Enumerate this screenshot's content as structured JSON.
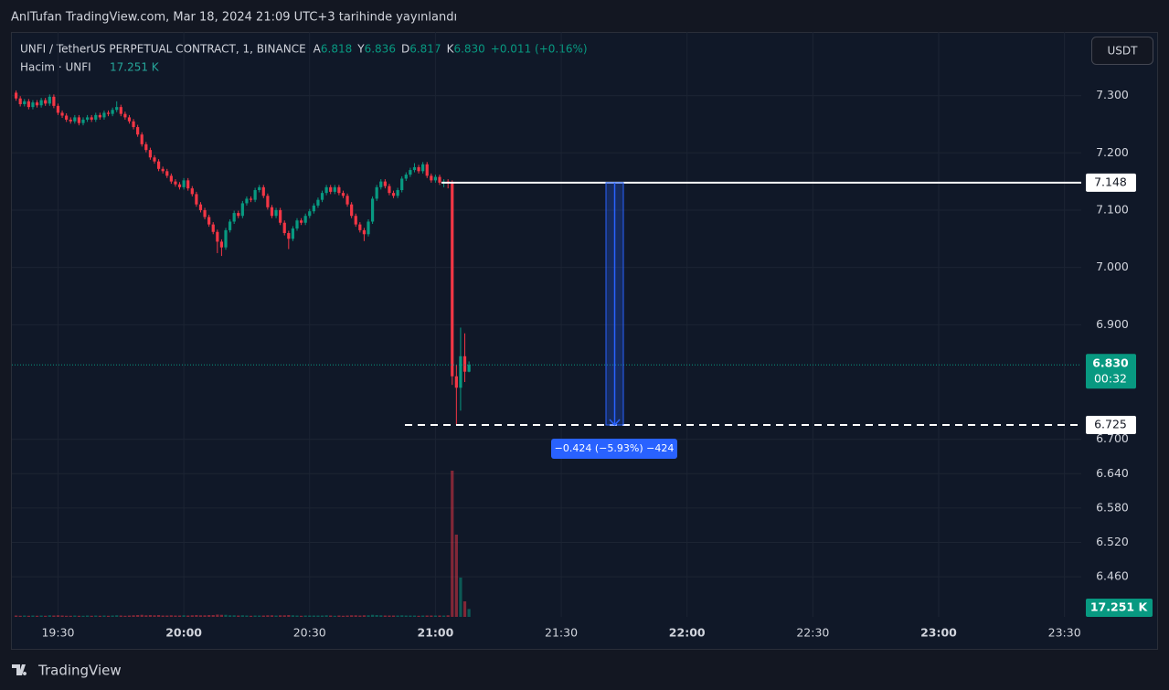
{
  "header": {
    "published": "AnlTufan TradingView.com, Mar 18, 2024 21:09 UTC+3 tarihinde yayınlandı",
    "currency": "USDT",
    "brand": "TradingView"
  },
  "chart_data": {
    "type": "candlestick",
    "title": "UNFI / TetherUS PERPETUAL CONTRACT, 1, BINANCE",
    "legend_ohlc": [
      {
        "key": "A",
        "value": "6.818"
      },
      {
        "key": "Y",
        "value": "6.836"
      },
      {
        "key": "D",
        "value": "6.817"
      },
      {
        "key": "K",
        "value": "6.830"
      }
    ],
    "change": "+0.011 (+0.16%)",
    "volume_title": "Hacim · UNFI",
    "volume_label": "17.251 K",
    "up_color": "#089981",
    "down_color": "#f23645",
    "x": [
      "19:20",
      "19:21",
      "19:22",
      "19:23",
      "19:24",
      "19:25",
      "19:26",
      "19:27",
      "19:28",
      "19:29",
      "19:30",
      "19:31",
      "19:32",
      "19:33",
      "19:34",
      "19:35",
      "19:36",
      "19:37",
      "19:38",
      "19:39",
      "19:40",
      "19:41",
      "19:42",
      "19:43",
      "19:44",
      "19:45",
      "19:46",
      "19:47",
      "19:48",
      "19:49",
      "19:50",
      "19:51",
      "19:52",
      "19:53",
      "19:54",
      "19:55",
      "19:56",
      "19:57",
      "19:58",
      "19:59",
      "20:00",
      "20:01",
      "20:02",
      "20:03",
      "20:04",
      "20:05",
      "20:06",
      "20:07",
      "20:08",
      "20:09",
      "20:10",
      "20:11",
      "20:12",
      "20:13",
      "20:14",
      "20:15",
      "20:16",
      "20:17",
      "20:18",
      "20:19",
      "20:20",
      "20:21",
      "20:22",
      "20:23",
      "20:24",
      "20:25",
      "20:26",
      "20:27",
      "20:28",
      "20:29",
      "20:30",
      "20:31",
      "20:32",
      "20:33",
      "20:34",
      "20:35",
      "20:36",
      "20:37",
      "20:38",
      "20:39",
      "20:40",
      "20:41",
      "20:42",
      "20:43",
      "20:44",
      "20:45",
      "20:46",
      "20:47",
      "20:48",
      "20:49",
      "20:50",
      "20:51",
      "20:52",
      "20:53",
      "20:54",
      "20:55",
      "20:56",
      "20:57",
      "20:58",
      "20:59",
      "21:00",
      "21:01",
      "21:02",
      "21:03",
      "21:04",
      "21:05",
      "21:06",
      "21:07",
      "21:08"
    ],
    "ohlc": [
      [
        7.305,
        7.309,
        7.291,
        7.295
      ],
      [
        7.295,
        7.299,
        7.281,
        7.285
      ],
      [
        7.285,
        7.294,
        7.281,
        7.29
      ],
      [
        7.29,
        7.294,
        7.276,
        7.28
      ],
      [
        7.28,
        7.292,
        7.276,
        7.288
      ],
      [
        7.288,
        7.292,
        7.279,
        7.283
      ],
      [
        7.283,
        7.296,
        7.279,
        7.292
      ],
      [
        7.292,
        7.296,
        7.282,
        7.286
      ],
      [
        7.286,
        7.302,
        7.282,
        7.298
      ],
      [
        7.298,
        7.302,
        7.278,
        7.282
      ],
      [
        7.282,
        7.286,
        7.266,
        7.27
      ],
      [
        7.27,
        7.274,
        7.261,
        7.265
      ],
      [
        7.265,
        7.269,
        7.254,
        7.258
      ],
      [
        7.258,
        7.262,
        7.251,
        7.255
      ],
      [
        7.255,
        7.266,
        7.251,
        7.262
      ],
      [
        7.262,
        7.266,
        7.248,
        7.252
      ],
      [
        7.252,
        7.262,
        7.248,
        7.258
      ],
      [
        7.258,
        7.266,
        7.254,
        7.262
      ],
      [
        7.262,
        7.266,
        7.254,
        7.258
      ],
      [
        7.258,
        7.27,
        7.254,
        7.266
      ],
      [
        7.266,
        7.27,
        7.258,
        7.262
      ],
      [
        7.262,
        7.274,
        7.258,
        7.27
      ],
      [
        7.27,
        7.274,
        7.264,
        7.268
      ],
      [
        7.268,
        7.279,
        7.264,
        7.275
      ],
      [
        7.275,
        7.29,
        7.271,
        7.28
      ],
      [
        7.28,
        7.284,
        7.264,
        7.268
      ],
      [
        7.268,
        7.272,
        7.258,
        7.262
      ],
      [
        7.262,
        7.266,
        7.251,
        7.255
      ],
      [
        7.255,
        7.259,
        7.241,
        7.245
      ],
      [
        7.245,
        7.249,
        7.228,
        7.232
      ],
      [
        7.232,
        7.236,
        7.211,
        7.215
      ],
      [
        7.215,
        7.219,
        7.201,
        7.205
      ],
      [
        7.205,
        7.209,
        7.188,
        7.192
      ],
      [
        7.192,
        7.196,
        7.181,
        7.185
      ],
      [
        7.185,
        7.189,
        7.168,
        7.172
      ],
      [
        7.172,
        7.176,
        7.164,
        7.168
      ],
      [
        7.168,
        7.172,
        7.156,
        7.16
      ],
      [
        7.16,
        7.164,
        7.146,
        7.15
      ],
      [
        7.15,
        7.154,
        7.141,
        7.145
      ],
      [
        7.145,
        7.149,
        7.136,
        7.14
      ],
      [
        7.14,
        7.156,
        7.136,
        7.152
      ],
      [
        7.152,
        7.156,
        7.134,
        7.138
      ],
      [
        7.138,
        7.142,
        7.124,
        7.128
      ],
      [
        7.128,
        7.132,
        7.106,
        7.11
      ],
      [
        7.11,
        7.114,
        7.096,
        7.1
      ],
      [
        7.1,
        7.104,
        7.084,
        7.088
      ],
      [
        7.088,
        7.092,
        7.071,
        7.075
      ],
      [
        7.075,
        7.079,
        7.058,
        7.062
      ],
      [
        7.062,
        7.066,
        7.025,
        7.045
      ],
      [
        7.045,
        7.049,
        7.02,
        7.035
      ],
      [
        7.035,
        7.069,
        7.031,
        7.065
      ],
      [
        7.065,
        7.084,
        7.061,
        7.08
      ],
      [
        7.08,
        7.099,
        7.076,
        7.095
      ],
      [
        7.095,
        7.099,
        7.086,
        7.09
      ],
      [
        7.09,
        7.116,
        7.086,
        7.112
      ],
      [
        7.112,
        7.124,
        7.108,
        7.12
      ],
      [
        7.12,
        7.124,
        7.114,
        7.118
      ],
      [
        7.118,
        7.139,
        7.114,
        7.135
      ],
      [
        7.135,
        7.144,
        7.131,
        7.14
      ],
      [
        7.14,
        7.144,
        7.121,
        7.125
      ],
      [
        7.125,
        7.129,
        7.101,
        7.105
      ],
      [
        7.105,
        7.109,
        7.086,
        7.09
      ],
      [
        7.09,
        7.104,
        7.086,
        7.1
      ],
      [
        7.1,
        7.104,
        7.074,
        7.078
      ],
      [
        7.078,
        7.082,
        7.056,
        7.06
      ],
      [
        7.06,
        7.064,
        7.032,
        7.05
      ],
      [
        7.05,
        7.072,
        7.046,
        7.068
      ],
      [
        7.068,
        7.086,
        7.064,
        7.082
      ],
      [
        7.082,
        7.086,
        7.074,
        7.078
      ],
      [
        7.078,
        7.094,
        7.074,
        7.09
      ],
      [
        7.09,
        7.102,
        7.086,
        7.098
      ],
      [
        7.098,
        7.112,
        7.094,
        7.108
      ],
      [
        7.108,
        7.122,
        7.104,
        7.118
      ],
      [
        7.118,
        7.134,
        7.114,
        7.13
      ],
      [
        7.13,
        7.144,
        7.126,
        7.14
      ],
      [
        7.14,
        7.144,
        7.128,
        7.132
      ],
      [
        7.132,
        7.144,
        7.128,
        7.14
      ],
      [
        7.14,
        7.144,
        7.126,
        7.13
      ],
      [
        7.13,
        7.134,
        7.121,
        7.125
      ],
      [
        7.125,
        7.129,
        7.106,
        7.11
      ],
      [
        7.11,
        7.114,
        7.086,
        7.09
      ],
      [
        7.09,
        7.094,
        7.071,
        7.075
      ],
      [
        7.075,
        7.079,
        7.061,
        7.065
      ],
      [
        7.065,
        7.069,
        7.046,
        7.058
      ],
      [
        7.058,
        7.084,
        7.054,
        7.08
      ],
      [
        7.08,
        7.124,
        7.076,
        7.12
      ],
      [
        7.12,
        7.144,
        7.116,
        7.14
      ],
      [
        7.14,
        7.154,
        7.136,
        7.15
      ],
      [
        7.15,
        7.154,
        7.138,
        7.142
      ],
      [
        7.142,
        7.146,
        7.126,
        7.13
      ],
      [
        7.13,
        7.134,
        7.121,
        7.125
      ],
      [
        7.125,
        7.139,
        7.121,
        7.135
      ],
      [
        7.135,
        7.159,
        7.131,
        7.155
      ],
      [
        7.155,
        7.166,
        7.151,
        7.162
      ],
      [
        7.162,
        7.174,
        7.158,
        7.17
      ],
      [
        7.17,
        7.182,
        7.166,
        7.175
      ],
      [
        7.175,
        7.179,
        7.164,
        7.168
      ],
      [
        7.168,
        7.184,
        7.164,
        7.18
      ],
      [
        7.18,
        7.184,
        7.156,
        7.16
      ],
      [
        7.16,
        7.164,
        7.148,
        7.152
      ],
      [
        7.152,
        7.162,
        7.148,
        7.158
      ],
      [
        7.158,
        7.162,
        7.144,
        7.148
      ],
      [
        7.148,
        7.154,
        7.14,
        7.15
      ],
      [
        7.15,
        7.154,
        7.138,
        7.148
      ],
      [
        7.148,
        7.152,
        6.795,
        6.81
      ],
      [
        6.81,
        6.83,
        6.725,
        6.79
      ],
      [
        6.79,
        6.895,
        6.75,
        6.845
      ],
      [
        6.845,
        6.885,
        6.8,
        6.818
      ],
      [
        6.818,
        6.836,
        6.817,
        6.83
      ]
    ],
    "volume": [
      3000,
      2500,
      3000,
      2500,
      3000,
      2500,
      3000,
      2500,
      3500,
      3000,
      3500,
      3000,
      2500,
      2500,
      3000,
      2500,
      2500,
      3000,
      2500,
      3000,
      2500,
      3000,
      2500,
      3000,
      3500,
      3000,
      2500,
      3000,
      3500,
      4000,
      4500,
      3500,
      4000,
      3500,
      4000,
      3000,
      3000,
      3500,
      3000,
      3000,
      3500,
      3000,
      3500,
      4000,
      3500,
      3500,
      4000,
      4000,
      5000,
      4500,
      4500,
      3500,
      3500,
      3000,
      3500,
      3000,
      2500,
      3000,
      3000,
      3000,
      3500,
      3500,
      3000,
      3500,
      3500,
      4000,
      3500,
      3000,
      2500,
      3000,
      3000,
      3000,
      3000,
      3000,
      3500,
      3000,
      2500,
      3000,
      2500,
      3000,
      3500,
      3500,
      3000,
      3500,
      3500,
      4500,
      4000,
      3500,
      3000,
      3000,
      3000,
      3000,
      3500,
      3000,
      3000,
      3000,
      2500,
      3000,
      3000,
      3000,
      3000,
      3000,
      3000,
      3500,
      320000,
      180000,
      86000,
      34000,
      17251
    ],
    "xlim": [
      "19:19",
      "23:34"
    ],
    "xticks": [
      "19:30",
      "20:00",
      "20:30",
      "21:00",
      "21:30",
      "22:00",
      "22:30",
      "23:00",
      "23:30"
    ],
    "ylim": [
      6.39,
      7.411
    ],
    "yticks": [
      {
        "value": 6.46,
        "label": "6.460"
      },
      {
        "value": 6.52,
        "label": "6.520"
      },
      {
        "value": 6.58,
        "label": "6.580"
      },
      {
        "value": 6.64,
        "label": "6.640"
      },
      {
        "value": 6.7,
        "label": "6.700"
      },
      {
        "value": 6.9,
        "label": "6.900"
      },
      {
        "value": 7,
        "label": "7.000"
      },
      {
        "value": 7.1,
        "label": "7.100"
      },
      {
        "value": 7.2,
        "label": "7.200"
      },
      {
        "value": 7.3,
        "label": "7.300"
      }
    ],
    "y2lim": [
      0,
      400000
    ],
    "grid": true,
    "hlines": [
      {
        "value": 7.148,
        "label": "7.148",
        "style": "solid"
      },
      {
        "value": 6.725,
        "label": "6.725",
        "style": "dashed"
      }
    ],
    "last_price": {
      "value": 6.83,
      "label": "6.830",
      "countdown": "00:32"
    },
    "measure": {
      "label": "−0.424 (−5.93%) −424"
    }
  }
}
